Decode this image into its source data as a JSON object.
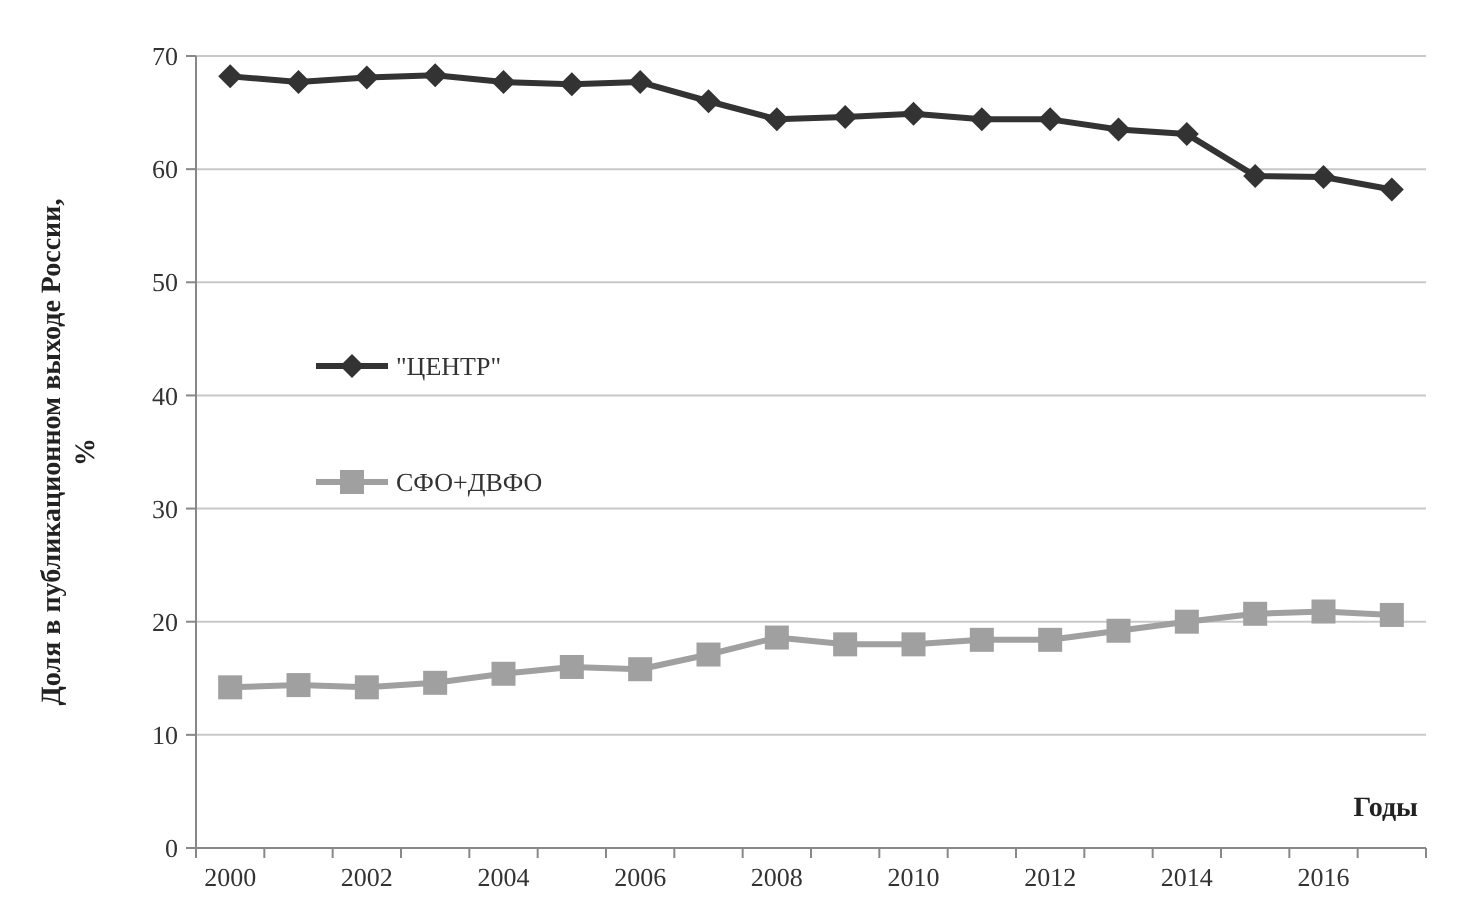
{
  "chart_data": {
    "type": "line",
    "xlabel": "Годы",
    "ylabel": "Доля в публикационном выходе России, %",
    "categories": [
      "2000",
      null,
      "2002",
      null,
      "2004",
      null,
      "2006",
      null,
      "2008",
      null,
      "2010",
      null,
      "2012",
      null,
      "2014",
      null,
      "2016",
      null
    ],
    "series": [
      {
        "name": "\"ЦЕНТР\"",
        "color": "#333333",
        "marker": "diamond",
        "values": [
          68.2,
          67.7,
          68.1,
          68.3,
          67.7,
          67.5,
          67.7,
          66.0,
          64.4,
          64.6,
          64.9,
          64.4,
          64.4,
          63.5,
          63.1,
          59.4,
          59.3,
          58.2
        ]
      },
      {
        "name": "СФО+ДВФО",
        "color": "#a0a0a0",
        "marker": "square",
        "values": [
          14.2,
          14.4,
          14.2,
          14.6,
          15.4,
          16.0,
          15.8,
          17.1,
          18.6,
          18.0,
          18.0,
          18.4,
          18.4,
          19.2,
          20.0,
          20.7,
          20.9,
          20.6
        ]
      }
    ],
    "ylim": [
      0,
      70
    ],
    "yticks": [
      0,
      10,
      20,
      30,
      40,
      50,
      60,
      70
    ],
    "grid": "y",
    "legend": "left"
  }
}
